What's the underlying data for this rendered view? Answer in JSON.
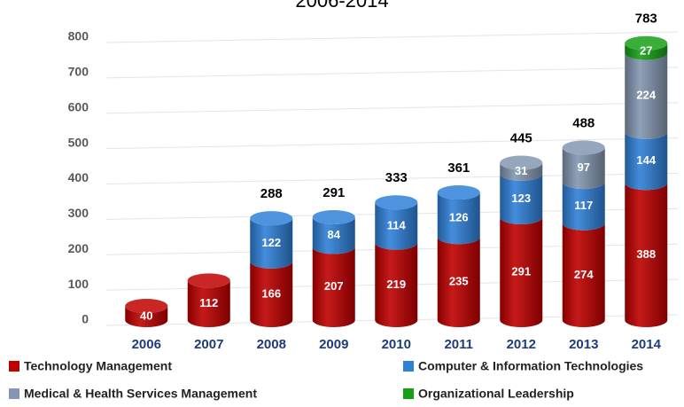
{
  "chart_data": {
    "type": "stacked-cylinder",
    "title": "2006-2014",
    "categories": [
      "2006",
      "2007",
      "2008",
      "2009",
      "2010",
      "2011",
      "2012",
      "2013",
      "2014"
    ],
    "series": [
      {
        "name": "Technology Management",
        "color": "#c00000",
        "values": [
          40,
          112,
          166,
          207,
          219,
          235,
          291,
          274,
          388
        ]
      },
      {
        "name": "Computer & Information Technologies",
        "color": "#2f80d8",
        "values": [
          null,
          null,
          122,
          84,
          114,
          126,
          123,
          117,
          144
        ]
      },
      {
        "name": "Medical & Health Services Management",
        "color": "#8496b0",
        "values": [
          null,
          null,
          null,
          null,
          null,
          null,
          31,
          97,
          224
        ]
      },
      {
        "name": "Organizational Leadership",
        "color": "#16a016",
        "values": [
          null,
          null,
          null,
          null,
          null,
          null,
          null,
          null,
          27
        ]
      }
    ],
    "totals": [
      null,
      null,
      288,
      291,
      333,
      361,
      445,
      488,
      783
    ],
    "ylim": [
      0,
      800
    ],
    "yticks": [
      0,
      100,
      200,
      300,
      400,
      500,
      600,
      700,
      800
    ],
    "grid": true
  }
}
